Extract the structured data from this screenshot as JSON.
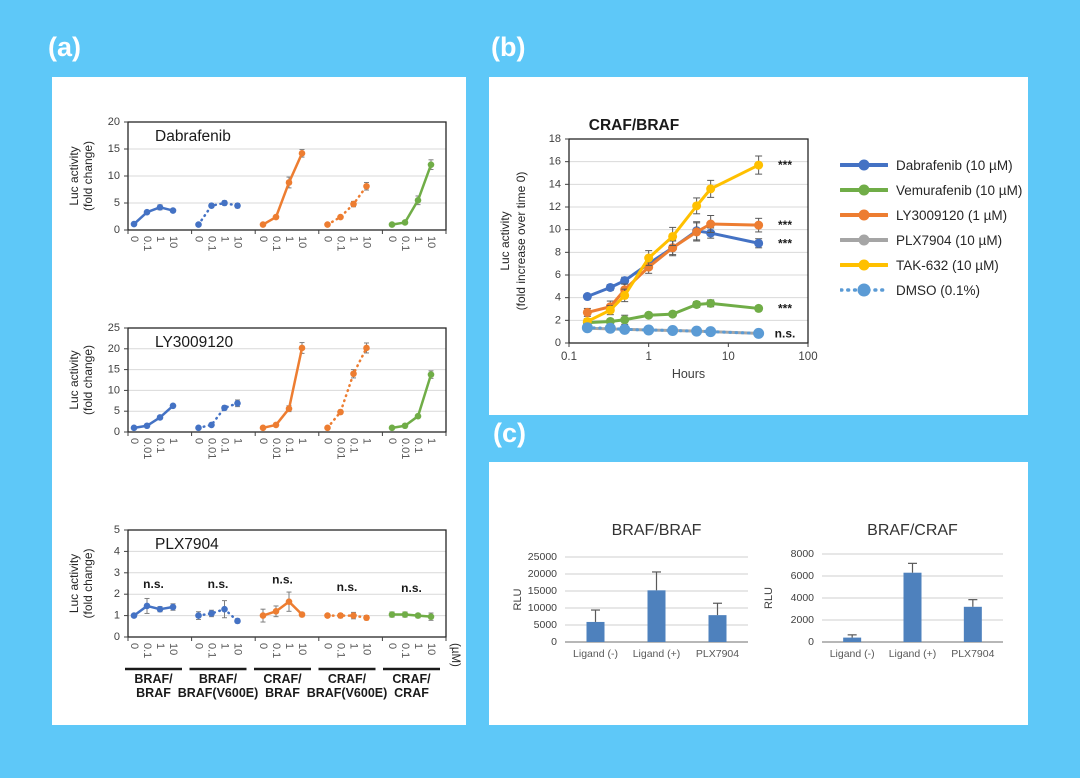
{
  "page": {
    "background": "#5EC8F8"
  },
  "labels": {
    "a": "(a)",
    "b": "(b)",
    "c": "(c)"
  },
  "colors": {
    "blue": "#4472C4",
    "orange": "#ED7D31",
    "green": "#70AD47",
    "yellow": "#FFC000",
    "gray": "#A5A5A5",
    "lightblue": "#5B9BD5",
    "bar": "#4E81BD",
    "grid": "#D9D9D9",
    "axis_text": "#595959",
    "tick_text": "#404040"
  },
  "panel_a": {
    "ylabel_lines": [
      "Luc activity",
      "(fold change)"
    ],
    "unit_label": "(µM)",
    "group_labels": [
      [
        "BRAF/",
        "BRAF"
      ],
      [
        "BRAF/",
        "BRAF(V600E)"
      ],
      [
        "CRAF/",
        "BRAF"
      ],
      [
        "CRAF/",
        "BRAF(V600E)"
      ],
      [
        "CRAF/",
        "CRAF"
      ]
    ]
  },
  "chart_data": [
    {
      "id": "panel-a-dabrafenib",
      "type": "line",
      "title": "Dabrafenib",
      "ylim": [
        0,
        20
      ],
      "yticks": [
        0,
        5,
        10,
        15,
        20
      ],
      "xtick_labels": [
        "0",
        "0.1",
        "1",
        "10"
      ],
      "x_unit": "µM",
      "series": [
        {
          "name": "BRAF/BRAF",
          "color": "blue",
          "style": "solid",
          "values": [
            1.1,
            3.3,
            4.2,
            3.6
          ],
          "errors": [
            0.1,
            0.3,
            0.45,
            0.3
          ]
        },
        {
          "name": "BRAF/BRAF(V600E)",
          "color": "blue",
          "style": "dot",
          "values": [
            1.0,
            4.5,
            5.0,
            4.5
          ],
          "errors": [
            0.1,
            0.35,
            0.4,
            0.4
          ]
        },
        {
          "name": "CRAF/BRAF",
          "color": "orange",
          "style": "solid",
          "values": [
            1.0,
            2.4,
            8.8,
            14.2
          ],
          "errors": [
            0.1,
            0.3,
            1.0,
            0.7
          ]
        },
        {
          "name": "CRAF/BRAF(V600E)",
          "color": "orange",
          "style": "dot",
          "values": [
            1.0,
            2.4,
            4.8,
            8.1
          ],
          "errors": [
            0.1,
            0.25,
            0.5,
            0.7
          ]
        },
        {
          "name": "CRAF/CRAF",
          "color": "green",
          "style": "solid",
          "values": [
            1.0,
            1.4,
            5.5,
            12.1
          ],
          "errors": [
            0.08,
            0.2,
            0.8,
            0.9
          ]
        }
      ]
    },
    {
      "id": "panel-a-ly3009120",
      "type": "line",
      "title": "LY3009120",
      "ylim": [
        0,
        25
      ],
      "yticks": [
        0,
        5,
        10,
        15,
        20,
        25
      ],
      "xtick_labels": [
        "0",
        "0.01",
        "0.1",
        "1"
      ],
      "x_unit": "µM",
      "series": [
        {
          "name": "BRAF/BRAF",
          "color": "blue",
          "style": "solid",
          "values": [
            1.0,
            1.5,
            3.5,
            6.3
          ],
          "errors": [
            0.1,
            0.15,
            0.35,
            0.4
          ]
        },
        {
          "name": "BRAF/BRAF(V600E)",
          "color": "blue",
          "style": "dot",
          "values": [
            1.0,
            1.7,
            5.8,
            6.9
          ],
          "errors": [
            0.1,
            0.2,
            0.5,
            0.8
          ]
        },
        {
          "name": "CRAF/BRAF",
          "color": "orange",
          "style": "solid",
          "values": [
            1.0,
            1.7,
            5.6,
            20.2
          ],
          "errors": [
            0.1,
            0.2,
            0.7,
            1.3
          ]
        },
        {
          "name": "CRAF/BRAF(V600E)",
          "color": "orange",
          "style": "dot",
          "values": [
            1.0,
            4.8,
            14.0,
            20.2
          ],
          "errors": [
            0.1,
            0.5,
            1.0,
            1.2
          ]
        },
        {
          "name": "CRAF/CRAF",
          "color": "green",
          "style": "solid",
          "values": [
            1.0,
            1.5,
            3.8,
            13.8
          ],
          "errors": [
            0.1,
            0.2,
            0.4,
            0.9
          ]
        }
      ]
    },
    {
      "id": "panel-a-plx7904",
      "type": "line",
      "title": "PLX7904",
      "ylim": [
        0,
        5
      ],
      "yticks": [
        0,
        1,
        2,
        3,
        4,
        5
      ],
      "xtick_labels": [
        "0",
        "0.1",
        "1",
        "10"
      ],
      "x_unit": "µM",
      "ns": {
        "text": "n.s.",
        "y": [
          2.3,
          2.3,
          2.5,
          2.15,
          2.1
        ]
      },
      "show_group_labels": true,
      "series": [
        {
          "name": "BRAF/BRAF",
          "color": "blue",
          "style": "solid",
          "values": [
            1.0,
            1.45,
            1.3,
            1.4
          ],
          "errors": [
            0.08,
            0.35,
            0.12,
            0.15
          ]
        },
        {
          "name": "BRAF/BRAF(V600E)",
          "color": "blue",
          "style": "dot",
          "values": [
            1.0,
            1.1,
            1.3,
            0.75
          ],
          "errors": [
            0.18,
            0.15,
            0.4,
            0.1
          ]
        },
        {
          "name": "CRAF/BRAF",
          "color": "orange",
          "style": "solid",
          "values": [
            1.0,
            1.2,
            1.65,
            1.05
          ],
          "errors": [
            0.3,
            0.25,
            0.45,
            0.1
          ]
        },
        {
          "name": "CRAF/BRAF(V600E)",
          "color": "orange",
          "style": "dot",
          "values": [
            1.0,
            1.0,
            1.0,
            0.9
          ],
          "errors": [
            0.07,
            0.1,
            0.15,
            0.1
          ]
        },
        {
          "name": "CRAF/CRAF",
          "color": "green",
          "style": "solid",
          "values": [
            1.05,
            1.05,
            1.0,
            0.95
          ],
          "errors": [
            0.12,
            0.12,
            0.1,
            0.17
          ]
        }
      ]
    },
    {
      "id": "panel-b-craf-braf",
      "type": "line-log",
      "title": "CRAF/BRAF",
      "ylabel_lines": [
        "Luc activity",
        "(fold increase over time 0)"
      ],
      "xlabel": "Hours",
      "ylim": [
        0,
        18
      ],
      "yticks": [
        0,
        2,
        4,
        6,
        8,
        10,
        12,
        14,
        16,
        18
      ],
      "xticks": [
        "0.1",
        "1",
        "10",
        "100"
      ],
      "x_hours": [
        0.17,
        0.33,
        0.5,
        1,
        2,
        4,
        6,
        24
      ],
      "series": [
        {
          "name": "Dabrafenib (10 µM)",
          "color": "blue",
          "style": "solid",
          "marker": 4.5,
          "significance": "***",
          "values": [
            4.1,
            4.9,
            5.5,
            7.0,
            8.4,
            9.9,
            9.7,
            8.8
          ],
          "errors": [
            0.2,
            0.25,
            0.3,
            0.5,
            0.7,
            0.8,
            0.45,
            0.4
          ]
        },
        {
          "name": "Vemurafenib (10 µM)",
          "color": "green",
          "style": "solid",
          "marker": 4.5,
          "significance": "***",
          "values": [
            1.8,
            1.9,
            2.05,
            2.45,
            2.55,
            3.4,
            3.5,
            3.05
          ],
          "errors": [
            0.15,
            0.15,
            0.4,
            0.2,
            0.15,
            0.25,
            0.3,
            0.2
          ]
        },
        {
          "name": "LY3009120 (1 µM)",
          "color": "orange",
          "style": "solid",
          "marker": 4.5,
          "significance": "***",
          "values": [
            2.7,
            3.2,
            4.7,
            6.7,
            8.4,
            9.8,
            10.5,
            10.4
          ],
          "errors": [
            0.35,
            0.5,
            0.5,
            0.55,
            0.6,
            0.8,
            0.75,
            0.6
          ]
        },
        {
          "name": "PLX7904 (10 µM)",
          "color": "gray",
          "style": "solid",
          "marker": 3.5,
          "significance": null,
          "values": [
            1.3,
            1.25,
            1.2,
            1.15,
            1.1,
            1.05,
            1.0,
            0.85
          ],
          "errors": [
            0.05,
            0.05,
            0.05,
            0.05,
            0.05,
            0.05,
            0.05,
            0.05
          ]
        },
        {
          "name": "TAK-632 (10 µM)",
          "color": "yellow",
          "style": "solid",
          "marker": 4.5,
          "significance": "***",
          "values": [
            1.9,
            2.9,
            4.2,
            7.5,
            9.4,
            12.1,
            13.6,
            15.7
          ],
          "errors": [
            0.25,
            0.4,
            0.55,
            0.65,
            0.8,
            0.7,
            0.75,
            0.8
          ]
        },
        {
          "name": "DMSO (0.1%)",
          "color": "lightblue",
          "style": "dot",
          "marker": 5.5,
          "significance": "n.s.",
          "values": [
            1.35,
            1.3,
            1.2,
            1.15,
            1.1,
            1.05,
            1.0,
            0.85
          ],
          "errors": [
            0.05,
            0.05,
            0.05,
            0.05,
            0.05,
            0.05,
            0.05,
            0.05
          ]
        }
      ]
    },
    {
      "id": "panel-c-braf-braf",
      "type": "bar",
      "title": "BRAF/BRAF",
      "ylabel": "RLU",
      "ylim": [
        0,
        25000
      ],
      "yticks": [
        0,
        5000,
        10000,
        15000,
        20000,
        25000
      ],
      "categories": [
        "Ligand (-)",
        "Ligand (+)",
        "PLX7904"
      ],
      "values": [
        5900,
        15200,
        7900
      ],
      "errors": [
        3500,
        5400,
        3500
      ]
    },
    {
      "id": "panel-c-braf-craf",
      "type": "bar",
      "title": "BRAF/CRAF",
      "ylabel": "RLU",
      "ylim": [
        0,
        8000
      ],
      "yticks": [
        0,
        2000,
        4000,
        6000,
        8000
      ],
      "categories": [
        "Ligand (-)",
        "Ligand (+)",
        "PLX7904"
      ],
      "values": [
        400,
        6300,
        3200
      ],
      "errors": [
        250,
        850,
        650
      ]
    }
  ]
}
